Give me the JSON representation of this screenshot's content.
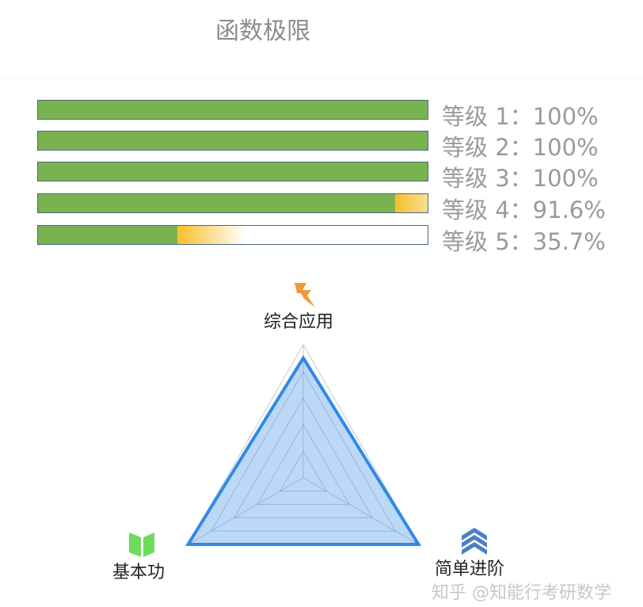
{
  "header": {
    "title": "函数极限"
  },
  "levels": [
    {
      "label": "等级 1：100%",
      "progress": 100
    },
    {
      "label": "等级 2：100%",
      "progress": 100
    },
    {
      "label": "等级 3：100%",
      "progress": 100
    },
    {
      "label": "等级 4：91.6%",
      "progress": 91.6
    },
    {
      "label": "等级 5：35.7%",
      "progress": 35.7
    }
  ],
  "colors": {
    "progress_fill": "#79b350",
    "progress_partial": "#f6bf2a",
    "bar_border": "#4a6784",
    "radar_line": "#2f8ae5",
    "radar_fill": "#bcd8f7"
  },
  "chart_data": {
    "type": "radar",
    "axes": [
      {
        "label": "综合应用",
        "icon": "lightning-icon",
        "value": 0.9
      },
      {
        "label": "简单进阶",
        "icon": "chevrons-up-icon",
        "value": 1.0
      },
      {
        "label": "基本功",
        "icon": "book-icon",
        "value": 1.0
      }
    ],
    "range": [
      0,
      1
    ],
    "grid_levels": 5,
    "grid": true
  },
  "watermark": "知乎 @知能行考研数学"
}
